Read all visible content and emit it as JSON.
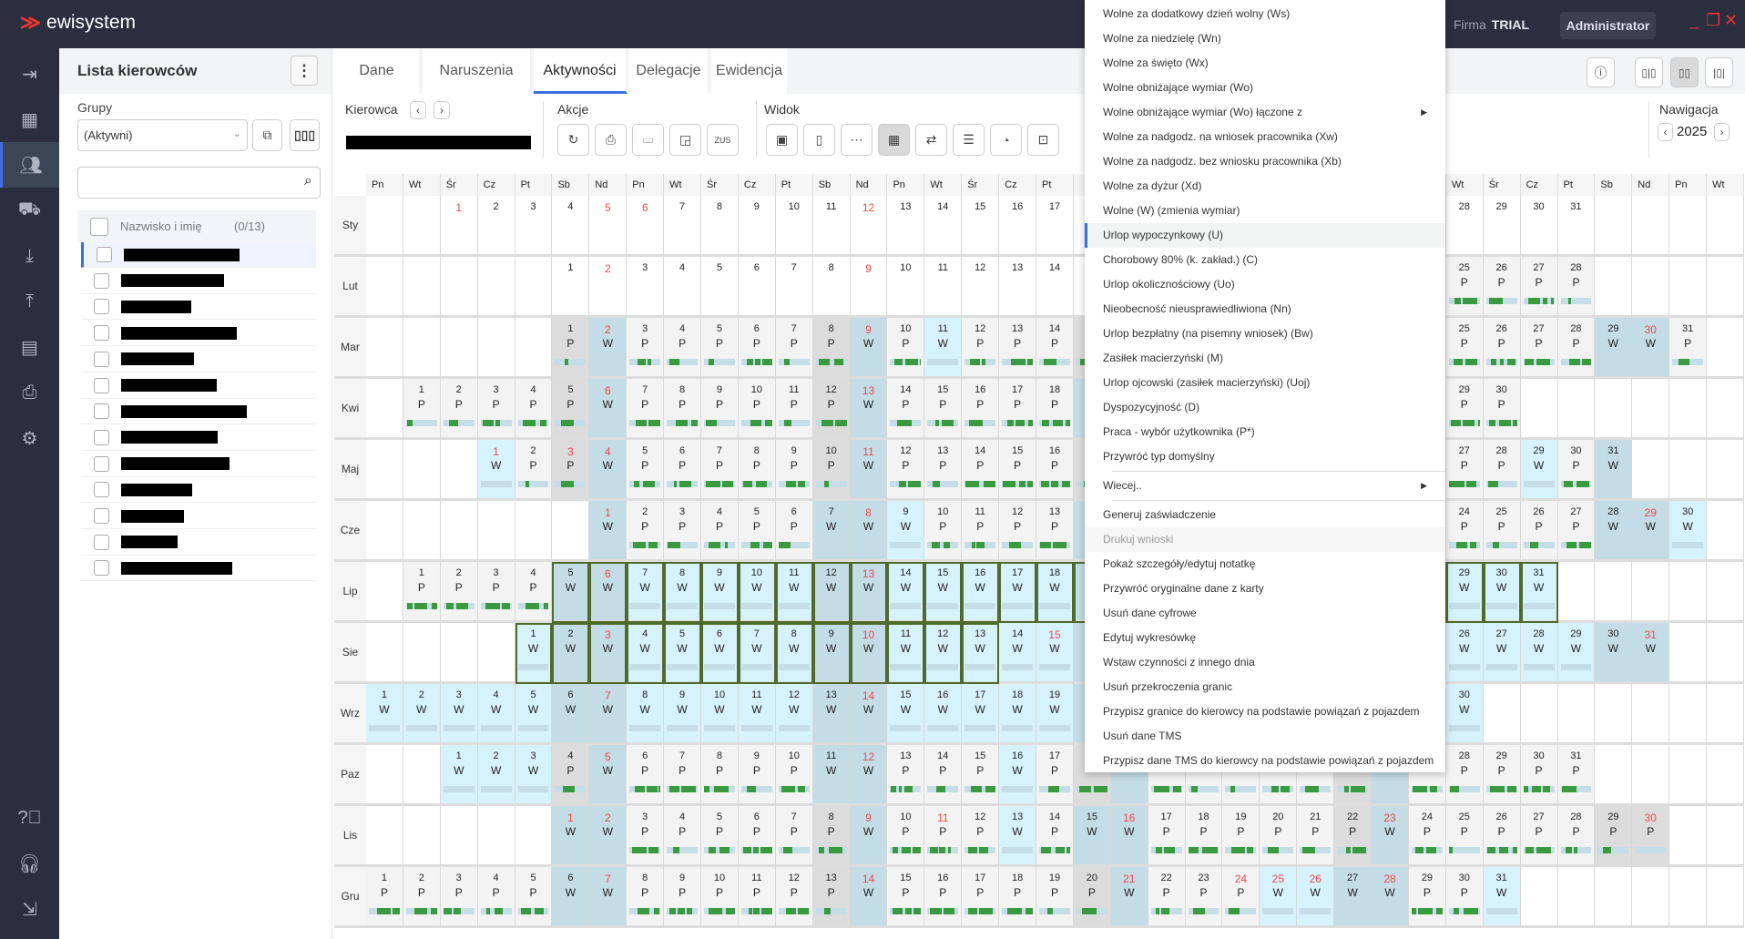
{
  "app": {
    "logo": "ewisystem",
    "firm_label": "Firma",
    "firm_value": "TRIAL",
    "user_button": "Administrator"
  },
  "window_controls": {
    "minimize": "_",
    "maximize": "❐",
    "close": "✕"
  },
  "rail": [
    "logout-icon",
    "dashboard-icon",
    "drivers-icon",
    "vehicles-icon",
    "download-icon",
    "upload-icon",
    "calendar-icon",
    "print-icon",
    "settings-icon",
    "help-icon",
    "headset-icon",
    "exit-icon"
  ],
  "panel": {
    "title": "Lista kierowców",
    "groups_label": "Grupy",
    "groups_value": "(Aktywni)",
    "search_placeholder": "",
    "list_header": "Nazwisko i imię",
    "list_count": "(0/13)",
    "driver_count": 13
  },
  "tabs": [
    {
      "label": "Dane"
    },
    {
      "label": "Naruszenia"
    },
    {
      "label": "Aktywności",
      "active": true
    },
    {
      "label": "Delegacje"
    },
    {
      "label": "Ewidencja"
    }
  ],
  "toolbar": {
    "driver_label": "Kierowca",
    "actions_label": "Akcje",
    "view_label": "Widok",
    "nav_label": "Nawigacja",
    "year": "2025",
    "actions": [
      "refresh-icon",
      "print-icon",
      "save-icon",
      "assign-icon",
      "zus-icon"
    ],
    "views": [
      "day-view-icon",
      "week-view-icon",
      "month-view-icon",
      "year-view-icon",
      "switch-view-icon",
      "list-view-icon",
      "chart-view-icon",
      "timeline-view-icon"
    ],
    "active_view": 3
  },
  "calendar": {
    "year": 2025,
    "weekdays": [
      "Pn",
      "Wt",
      "Śr",
      "Cz",
      "Pt",
      "Sb",
      "Nd"
    ],
    "holidays": [
      "1-1",
      "1-6",
      "4-20",
      "4-21",
      "5-1",
      "5-3",
      "6-8",
      "6-19",
      "8-15",
      "11-1",
      "11-11",
      "12-24",
      "12-25",
      "12-26"
    ],
    "selection": {
      "from": "7-5",
      "to": "8-13"
    },
    "months": [
      {
        "label": "Sty",
        "codes": "-------------------------------"
      },
      {
        "label": "Lut",
        "codes": "-----------------------PPPPP"
      },
      {
        "label": "Mar",
        "codes": "PWPPPPPPWPWPPPPWPPPPPPWPPPPPWWP"
      },
      {
        "label": "Kwi",
        "codes": "PPPPPWPPPPPPWPPPPPWWWPPPPPWPPP"
      },
      {
        "label": "Maj",
        "codes": "WPPWPPPPPPWPPPPPPWPPPPPPWPPPWPW"
      },
      {
        "label": "Cze",
        "codes": "WPPPPPWWWPPPPWWPPPWPWWPPPPPWWW"
      },
      {
        "label": "Lip",
        "codes": "PPPPWWWWWWWWWWWWWWWWWWWWWWWWWWW"
      },
      {
        "label": "Sie",
        "codes": "WWWWWWWWWWWWWWWWWWWWWWWWWWWWWWW"
      },
      {
        "label": "Wrz",
        "codes": "WWWWWWWWWWWWWWWWWWWWWWWWWWWWWW"
      },
      {
        "label": "Paz",
        "codes": "WWWPWPPPPPWWPPPWPPWPPPPPPWPPPPP"
      },
      {
        "label": "Lis",
        "codes": "WWPPPPPPWPPPWPWWPPPPPPWPPPPPPP"
      },
      {
        "label": "Gru",
        "codes": "PPPPPWWPPPPPPWPPPPPPWPPPWWWWPPW"
      }
    ]
  },
  "context_menu": [
    {
      "label": "Wolne za dodatkowy dzień wolny (Ws)"
    },
    {
      "label": "Wolne za niedzielę (Wn)"
    },
    {
      "label": "Wolne za święto (Wx)"
    },
    {
      "label": "Wolne obniżające wymiar (Wo)"
    },
    {
      "label": "Wolne obniżające wymiar (Wo) łączone z",
      "submenu": true
    },
    {
      "label": "Wolne za nadgodz. na wniosek pracownika (Xw)"
    },
    {
      "label": "Wolne za nadgodz. bez wniosku pracownika (Xb)"
    },
    {
      "label": "Wolne za dyżur (Xd)"
    },
    {
      "label": "Wolne (W) (zmienia wymiar)"
    },
    {
      "label": "Urlop wypoczynkowy (U)",
      "highlighted": true
    },
    {
      "label": "Chorobowy 80% (k. zakład.) (C)"
    },
    {
      "label": "Urlop okolicznościowy (Uo)"
    },
    {
      "label": "Nieobecność nieusprawiedliwiona (Nn)"
    },
    {
      "label": "Urlop bezpłatny (na pisemny wniosek) (Bw)"
    },
    {
      "label": "Zasiłek macierzyński (M)"
    },
    {
      "label": "Urlop ojcowski (zasiłek macierzyński) (Uoj)"
    },
    {
      "label": "Dyspozycyjność (D)"
    },
    {
      "label": "Praca - wybór użytkownika (P*)"
    },
    {
      "label": "Przywróć typ domyślny"
    },
    {
      "label": "Wiecej..",
      "submenu": true,
      "separator_before": true
    },
    {
      "label": "Generuj zaświadczenie",
      "separator_before": true
    },
    {
      "label": "Drukuj wnioski",
      "disabled": true
    },
    {
      "label": "Pokaż szczegóły/edytuj notatkę"
    },
    {
      "label": "Przywróć oryginalne dane z karty"
    },
    {
      "label": "Usuń dane cyfrowe"
    },
    {
      "label": "Edytuj wykresówkę"
    },
    {
      "label": "Wstaw czynności z innego dnia"
    },
    {
      "label": "Usuń przekroczenia granic"
    },
    {
      "label": "Przypisz granice do kierowcy na podstawie powiązań z pojazdem"
    },
    {
      "label": "Usuń dane TMS"
    },
    {
      "label": "Przypisz dane TMS do kierowcy na podstawie powiązań z pojazdem"
    }
  ],
  "colors": {
    "accent": "#3b6fe0",
    "header": "#2a2e3f",
    "activity": "#3a9a3f",
    "holiday": "#f0474a",
    "weekend_off": "#c3dce6",
    "weekday_off": "#d6f2fc",
    "saturday_work": "#dcdcdc",
    "work": "#f3f3f3",
    "selection": "#4f6b2a"
  }
}
